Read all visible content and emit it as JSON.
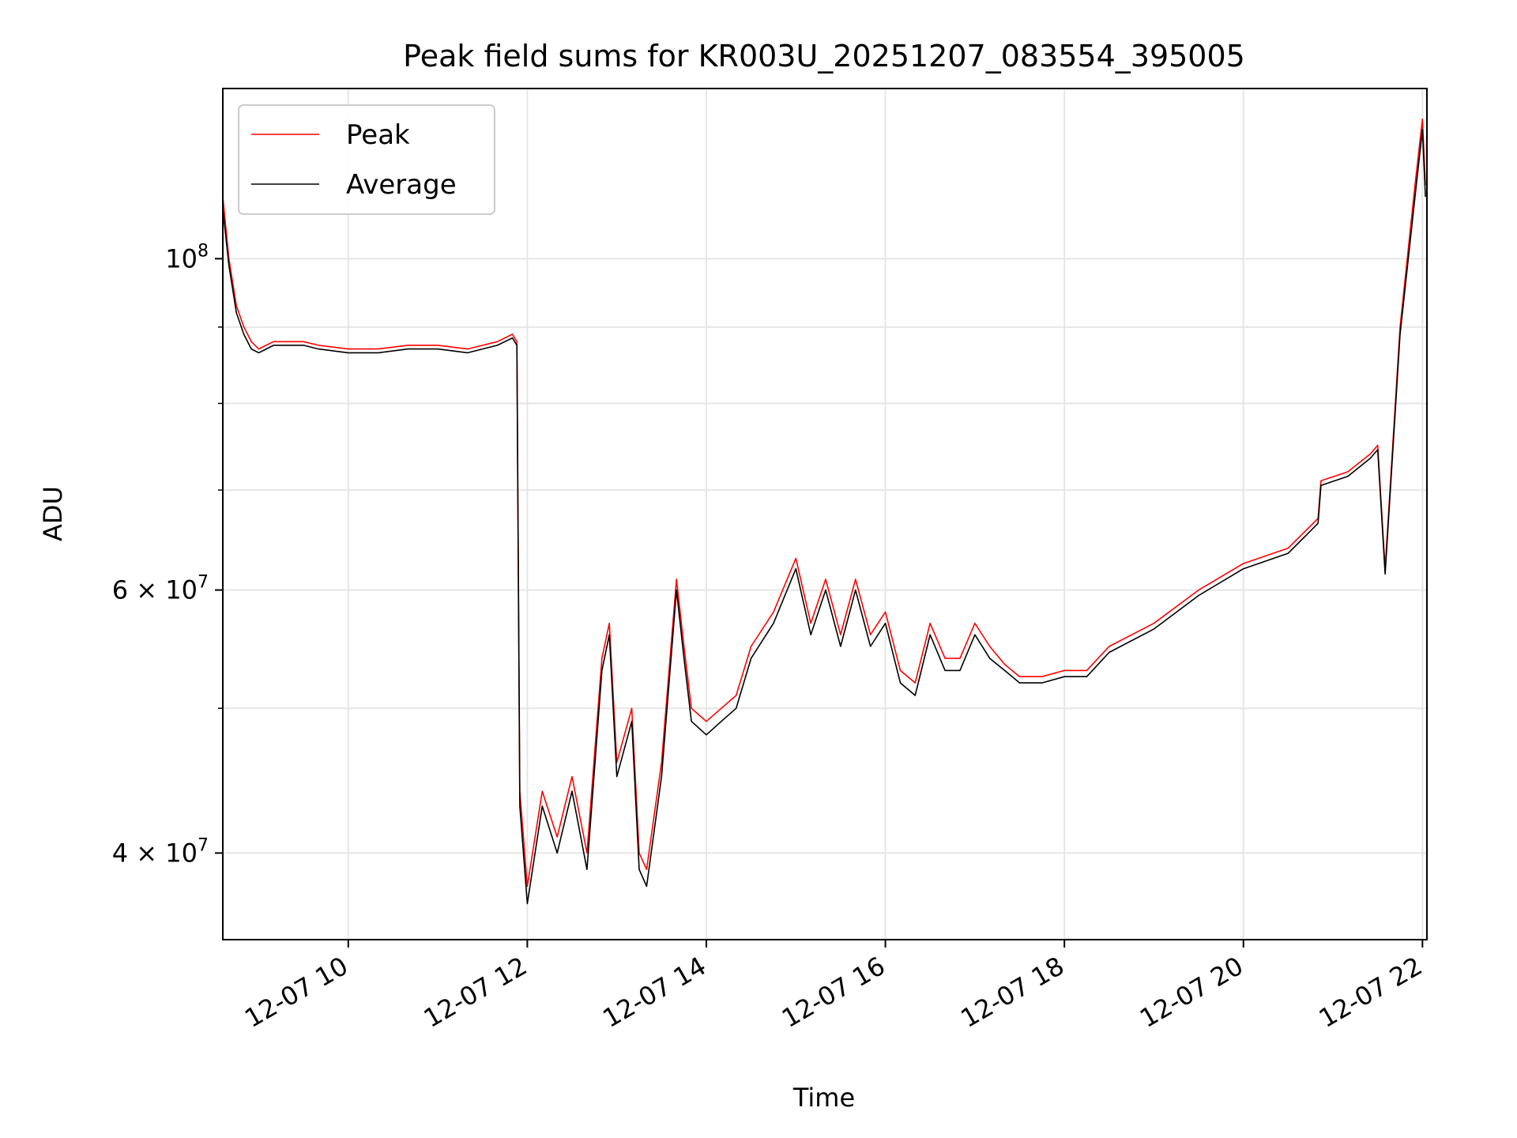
{
  "chart_data": {
    "type": "line",
    "title": "Peak field sums for KR003U_20251207_083554_395005",
    "xlabel": "Time",
    "ylabel": "ADU",
    "yscale": "log",
    "xlim": [
      "2025-12-07 08:35:54",
      "2025-12-07 22:03:00"
    ],
    "ylim": [
      35000000,
      130000000
    ],
    "grid": true,
    "legend_position": "upper left",
    "x_ticks": [
      "12-07 10",
      "12-07 12",
      "12-07 14",
      "12-07 16",
      "12-07 18",
      "12-07 20",
      "12-07 22"
    ],
    "y_ticks": [
      {
        "value": 100000000,
        "base": "10",
        "exp": "8"
      },
      {
        "value": 60000000,
        "base": "6 × 10",
        "exp": "7"
      },
      {
        "value": 40000000,
        "base": "4 × 10",
        "exp": "7"
      }
    ],
    "y_minor_ticks": [
      50000000,
      70000000,
      80000000,
      90000000
    ],
    "series": [
      {
        "name": "Peak",
        "color": "#ff0000",
        "x": [
          "2025-12-07 08:35",
          "2025-12-07 08:40",
          "2025-12-07 08:45",
          "2025-12-07 08:50",
          "2025-12-07 08:55",
          "2025-12-07 09:00",
          "2025-12-07 09:05",
          "2025-12-07 09:10",
          "2025-12-07 09:20",
          "2025-12-07 09:30",
          "2025-12-07 09:40",
          "2025-12-07 10:00",
          "2025-12-07 10:20",
          "2025-12-07 10:40",
          "2025-12-07 11:00",
          "2025-12-07 11:20",
          "2025-12-07 11:40",
          "2025-12-07 11:50",
          "2025-12-07 11:53",
          "2025-12-07 11:55",
          "2025-12-07 12:00",
          "2025-12-07 12:10",
          "2025-12-07 12:20",
          "2025-12-07 12:30",
          "2025-12-07 12:40",
          "2025-12-07 12:50",
          "2025-12-07 12:55",
          "2025-12-07 13:00",
          "2025-12-07 13:10",
          "2025-12-07 13:15",
          "2025-12-07 13:20",
          "2025-12-07 13:30",
          "2025-12-07 13:40",
          "2025-12-07 13:45",
          "2025-12-07 13:50",
          "2025-12-07 14:00",
          "2025-12-07 14:10",
          "2025-12-07 14:20",
          "2025-12-07 14:30",
          "2025-12-07 14:45",
          "2025-12-07 15:00",
          "2025-12-07 15:10",
          "2025-12-07 15:20",
          "2025-12-07 15:30",
          "2025-12-07 15:40",
          "2025-12-07 15:50",
          "2025-12-07 16:00",
          "2025-12-07 16:10",
          "2025-12-07 16:20",
          "2025-12-07 16:30",
          "2025-12-07 16:40",
          "2025-12-07 16:50",
          "2025-12-07 17:00",
          "2025-12-07 17:10",
          "2025-12-07 17:20",
          "2025-12-07 17:30",
          "2025-12-07 17:45",
          "2025-12-07 18:00",
          "2025-12-07 18:15",
          "2025-12-07 18:30",
          "2025-12-07 19:00",
          "2025-12-07 19:30",
          "2025-12-07 20:00",
          "2025-12-07 20:30",
          "2025-12-07 20:50",
          "2025-12-07 20:52",
          "2025-12-07 21:10",
          "2025-12-07 21:25",
          "2025-12-07 21:30",
          "2025-12-07 21:35",
          "2025-12-07 21:45",
          "2025-12-07 21:55",
          "2025-12-07 22:00",
          "2025-12-07 22:02"
        ],
        "values": [
          110000000,
          100000000,
          93000000,
          90000000,
          88000000,
          87000000,
          87500000,
          88000000,
          88000000,
          88000000,
          87500000,
          87000000,
          87000000,
          87500000,
          87500000,
          87000000,
          88000000,
          89000000,
          88000000,
          44000000,
          38000000,
          44000000,
          41000000,
          45000000,
          40000000,
          54000000,
          57000000,
          46000000,
          50000000,
          40000000,
          39000000,
          46000000,
          61000000,
          55000000,
          50000000,
          49000000,
          50000000,
          51000000,
          55000000,
          58000000,
          63000000,
          57000000,
          61000000,
          56000000,
          61000000,
          56000000,
          58000000,
          53000000,
          52000000,
          57000000,
          54000000,
          54000000,
          57000000,
          55000000,
          53500000,
          52500000,
          52500000,
          53000000,
          53000000,
          55000000,
          57000000,
          60000000,
          62500000,
          64000000,
          67000000,
          71000000,
          72000000,
          74000000,
          75000000,
          62000000,
          90000000,
          112000000,
          124000000,
          112000000
        ]
      },
      {
        "name": "Average",
        "color": "#000000",
        "x": [
          "2025-12-07 08:35",
          "2025-12-07 08:40",
          "2025-12-07 08:45",
          "2025-12-07 08:50",
          "2025-12-07 08:55",
          "2025-12-07 09:00",
          "2025-12-07 09:05",
          "2025-12-07 09:10",
          "2025-12-07 09:20",
          "2025-12-07 09:30",
          "2025-12-07 09:40",
          "2025-12-07 10:00",
          "2025-12-07 10:20",
          "2025-12-07 10:40",
          "2025-12-07 11:00",
          "2025-12-07 11:20",
          "2025-12-07 11:40",
          "2025-12-07 11:50",
          "2025-12-07 11:53",
          "2025-12-07 11:55",
          "2025-12-07 12:00",
          "2025-12-07 12:10",
          "2025-12-07 12:20",
          "2025-12-07 12:30",
          "2025-12-07 12:40",
          "2025-12-07 12:50",
          "2025-12-07 12:55",
          "2025-12-07 13:00",
          "2025-12-07 13:10",
          "2025-12-07 13:15",
          "2025-12-07 13:20",
          "2025-12-07 13:30",
          "2025-12-07 13:40",
          "2025-12-07 13:45",
          "2025-12-07 13:50",
          "2025-12-07 14:00",
          "2025-12-07 14:10",
          "2025-12-07 14:20",
          "2025-12-07 14:30",
          "2025-12-07 14:45",
          "2025-12-07 15:00",
          "2025-12-07 15:10",
          "2025-12-07 15:20",
          "2025-12-07 15:30",
          "2025-12-07 15:40",
          "2025-12-07 15:50",
          "2025-12-07 16:00",
          "2025-12-07 16:10",
          "2025-12-07 16:20",
          "2025-12-07 16:30",
          "2025-12-07 16:40",
          "2025-12-07 16:50",
          "2025-12-07 17:00",
          "2025-12-07 17:10",
          "2025-12-07 17:20",
          "2025-12-07 17:30",
          "2025-12-07 17:45",
          "2025-12-07 18:00",
          "2025-12-07 18:15",
          "2025-12-07 18:30",
          "2025-12-07 19:00",
          "2025-12-07 19:30",
          "2025-12-07 20:00",
          "2025-12-07 20:30",
          "2025-12-07 20:50",
          "2025-12-07 20:52",
          "2025-12-07 21:10",
          "2025-12-07 21:25",
          "2025-12-07 21:30",
          "2025-12-07 21:35",
          "2025-12-07 21:45",
          "2025-12-07 21:55",
          "2025-12-07 22:00",
          "2025-12-07 22:02"
        ],
        "values": [
          108000000,
          99000000,
          92000000,
          89000000,
          87000000,
          86500000,
          87000000,
          87500000,
          87500000,
          87500000,
          87000000,
          86500000,
          86500000,
          87000000,
          87000000,
          86500000,
          87500000,
          88500000,
          87500000,
          43000000,
          37000000,
          43000000,
          40000000,
          44000000,
          39000000,
          53000000,
          56000000,
          45000000,
          49000000,
          39000000,
          38000000,
          45000000,
          60000000,
          54000000,
          49000000,
          48000000,
          49000000,
          50000000,
          54000000,
          57000000,
          62000000,
          56000000,
          60000000,
          55000000,
          60000000,
          55000000,
          57000000,
          52000000,
          51000000,
          56000000,
          53000000,
          53000000,
          56000000,
          54000000,
          53000000,
          52000000,
          52000000,
          52500000,
          52500000,
          54500000,
          56500000,
          59500000,
          62000000,
          63500000,
          66500000,
          70500000,
          71500000,
          73500000,
          74500000,
          61500000,
          89000000,
          110000000,
          122000000,
          110000000
        ]
      }
    ]
  }
}
